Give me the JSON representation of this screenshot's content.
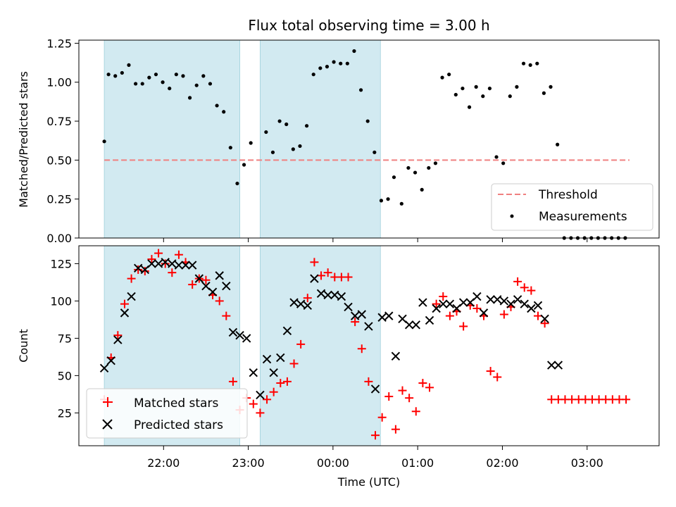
{
  "chart_data": [
    {
      "type": "scatter",
      "title": "Flux total observing time = 3.00 h",
      "xlabel": "",
      "ylabel": "Matched/Predicted stars",
      "x_unit": "hours since 21:00 UTC",
      "xlim": [
        0.0,
        6.85
      ],
      "ylim": [
        0.0,
        1.27
      ],
      "yticks": [
        0.0,
        0.25,
        0.5,
        0.75,
        1.0,
        1.25
      ],
      "ytick_labels": [
        "0.00",
        "0.25",
        "0.50",
        "0.75",
        "1.00",
        "1.25"
      ],
      "grid": false,
      "legend_position": "lower-right",
      "shaded_spans": [
        [
          0.3,
          1.9
        ],
        [
          2.14,
          3.56
        ]
      ],
      "threshold": {
        "name": "Threshold",
        "y": 0.5,
        "x_range": [
          0.3,
          6.5
        ],
        "color": "#f08080"
      },
      "series": [
        {
          "name": "Measurements",
          "color": "#000000",
          "x": [
            0.3,
            0.35,
            0.43,
            0.51,
            0.59,
            0.67,
            0.75,
            0.83,
            0.91,
            0.99,
            1.07,
            1.15,
            1.23,
            1.31,
            1.39,
            1.47,
            1.55,
            1.63,
            1.71,
            1.79,
            1.87,
            1.95,
            2.03,
            2.21,
            2.29,
            2.37,
            2.45,
            2.53,
            2.61,
            2.69,
            2.77,
            2.85,
            2.93,
            3.01,
            3.09,
            3.17,
            3.25,
            3.33,
            3.41,
            3.49,
            3.57,
            3.65,
            3.72,
            3.81,
            3.89,
            3.97,
            4.05,
            4.13,
            4.21,
            4.29,
            4.37,
            4.45,
            4.53,
            4.61,
            4.69,
            4.77,
            4.85,
            4.93,
            5.01,
            5.09,
            5.17,
            5.25,
            5.33,
            5.41,
            5.49,
            5.57,
            5.65,
            5.73,
            5.81,
            5.89,
            5.97,
            6.05,
            6.13,
            6.21,
            6.29,
            6.37,
            6.45
          ],
          "y": [
            0.62,
            1.05,
            1.04,
            1.06,
            1.11,
            0.99,
            0.99,
            1.03,
            1.05,
            1.0,
            0.96,
            1.05,
            1.04,
            0.9,
            0.98,
            1.04,
            0.99,
            0.85,
            0.81,
            0.58,
            0.35,
            0.47,
            0.61,
            0.68,
            0.55,
            0.75,
            0.73,
            0.57,
            0.59,
            0.72,
            1.05,
            1.09,
            1.1,
            1.13,
            1.12,
            1.12,
            1.2,
            0.95,
            0.75,
            0.55,
            0.24,
            0.25,
            0.39,
            0.22,
            0.45,
            0.42,
            0.31,
            0.45,
            0.48,
            1.03,
            1.05,
            0.92,
            0.96,
            0.84,
            0.97,
            0.91,
            0.96,
            0.52,
            0.48,
            0.91,
            0.97,
            1.12,
            1.11,
            1.12,
            0.93,
            0.97,
            0.6,
            0.0,
            0.0,
            0.0,
            0.0,
            0.0,
            0.0,
            0.0,
            0.0,
            0.0,
            0.0
          ]
        }
      ]
    },
    {
      "type": "scatter",
      "title": "",
      "xlabel": "Time (UTC)",
      "ylabel": "Count",
      "x_unit": "hours since 21:00 UTC",
      "xlim": [
        0.0,
        6.85
      ],
      "ylim": [
        3,
        137
      ],
      "yticks": [
        25,
        50,
        75,
        100,
        125
      ],
      "xticks": [
        1.0,
        2.0,
        3.0,
        4.0,
        5.0,
        6.0
      ],
      "xtick_labels": [
        "22:00",
        "23:00",
        "00:00",
        "01:00",
        "02:00",
        "03:00"
      ],
      "grid": false,
      "legend_position": "lower-left",
      "shaded_spans": [
        [
          0.3,
          1.9
        ],
        [
          2.14,
          3.56
        ]
      ],
      "series": [
        {
          "name": "Matched stars",
          "marker": "+",
          "color": "#ff0000",
          "x": [
            0.3,
            0.38,
            0.46,
            0.54,
            0.62,
            0.7,
            0.78,
            0.86,
            0.94,
            1.02,
            1.1,
            1.18,
            1.26,
            1.34,
            1.42,
            1.5,
            1.58,
            1.66,
            1.74,
            1.82,
            1.9,
            1.98,
            2.06,
            2.14,
            2.22,
            2.3,
            2.38,
            2.46,
            2.54,
            2.62,
            2.7,
            2.78,
            2.86,
            2.94,
            3.02,
            3.1,
            3.18,
            3.26,
            3.34,
            3.42,
            3.5,
            3.58,
            3.66,
            3.74,
            3.82,
            3.9,
            3.98,
            4.06,
            4.14,
            4.22,
            4.3,
            4.38,
            4.46,
            4.54,
            4.62,
            4.7,
            4.78,
            4.86,
            4.94,
            5.02,
            5.1,
            5.18,
            5.26,
            5.34,
            5.42,
            5.5,
            5.58,
            5.66,
            5.74,
            5.82,
            5.9,
            5.98,
            6.06,
            6.14,
            6.22,
            6.3,
            6.38,
            6.46
          ],
          "y": [
            34,
            62,
            77,
            98,
            115,
            121,
            120,
            128,
            132,
            125,
            119,
            131,
            126,
            111,
            115,
            114,
            104,
            100,
            90,
            46,
            27,
            35,
            31,
            25,
            34,
            39,
            45,
            46,
            58,
            71,
            102,
            126,
            117,
            119,
            116,
            116,
            116,
            86,
            68,
            46,
            10,
            22,
            36,
            14,
            40,
            35,
            26,
            45,
            42,
            98,
            103,
            90,
            93,
            83,
            97,
            95,
            90,
            53,
            49,
            91,
            96,
            113,
            109,
            107,
            90,
            85,
            34,
            34,
            34,
            34,
            34,
            34,
            34,
            34,
            34,
            34,
            34,
            34
          ]
        },
        {
          "name": "Predicted stars",
          "marker": "x",
          "color": "#000000",
          "x": [
            0.3,
            0.38,
            0.46,
            0.54,
            0.62,
            0.7,
            0.78,
            0.86,
            0.94,
            1.02,
            1.1,
            1.18,
            1.26,
            1.34,
            1.42,
            1.5,
            1.58,
            1.66,
            1.74,
            1.82,
            1.9,
            1.98,
            2.06,
            2.14,
            2.22,
            2.3,
            2.38,
            2.46,
            2.54,
            2.62,
            2.7,
            2.78,
            2.86,
            2.94,
            3.02,
            3.1,
            3.18,
            3.26,
            3.34,
            3.42,
            3.5,
            3.58,
            3.66,
            3.74,
            3.82,
            3.9,
            3.98,
            4.06,
            4.14,
            4.22,
            4.3,
            4.38,
            4.46,
            4.54,
            4.62,
            4.7,
            4.78,
            4.86,
            4.94,
            5.02,
            5.1,
            5.18,
            5.26,
            5.34,
            5.42,
            5.5,
            5.58,
            5.66
          ],
          "y": [
            55,
            60,
            74,
            92,
            103,
            122,
            121,
            125,
            125,
            126,
            125,
            124,
            124,
            124,
            115,
            110,
            106,
            117,
            110,
            79,
            77,
            75,
            52,
            37,
            61,
            52,
            62,
            80,
            99,
            98,
            97,
            115,
            105,
            104,
            104,
            103,
            96,
            90,
            91,
            83,
            41,
            89,
            90,
            63,
            88,
            84,
            84,
            99,
            87,
            95,
            98,
            98,
            95,
            99,
            99,
            103,
            92,
            101,
            101,
            100,
            98,
            101,
            98,
            95,
            97,
            88,
            57,
            57
          ]
        }
      ]
    }
  ]
}
